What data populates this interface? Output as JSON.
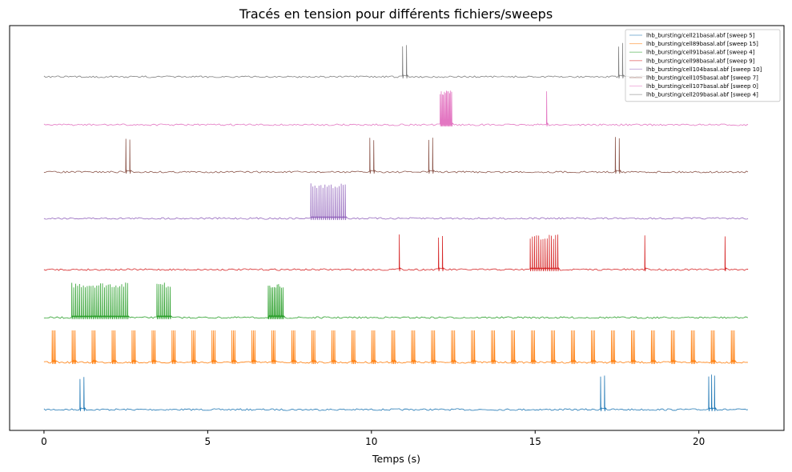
{
  "chart_data": {
    "type": "line",
    "title": "Tracés en tension pour différents fichiers/sweeps",
    "xlabel": "Temps (s)",
    "ylabel": "",
    "xlim": [
      -1.05,
      22.6
    ],
    "xticks": [
      0,
      5,
      10,
      15,
      20
    ],
    "y_axis_visible": false,
    "legend_placement": "top-right",
    "x_max": 21.5,
    "series": [
      {
        "name": "lhb_bursting/cell21basal.abf [sweep 5]",
        "color": "#1f77b4",
        "pattern": "spikes",
        "bursts": [
          [
            1.1,
            2
          ],
          [
            17.0,
            2
          ],
          [
            20.3,
            3
          ]
        ]
      },
      {
        "name": "lhb_bursting/cell89basal.abf [sweep 15]",
        "color": "#ff7f0e",
        "pattern": "regular",
        "period": 0.61,
        "start": 0.25
      },
      {
        "name": "lhb_bursting/cell91basal.abf [sweep 4]",
        "color": "#2ca02c",
        "pattern": "bursts",
        "bursts": [
          [
            0.85,
            30,
            1.7
          ],
          [
            3.45,
            8,
            0.4
          ],
          [
            6.85,
            11,
            0.45
          ]
        ]
      },
      {
        "name": "lhb_bursting/cell98basal.abf [sweep 9]",
        "color": "#d62728",
        "pattern": "spikes",
        "bursts": [
          [
            10.85,
            1
          ],
          [
            12.05,
            2
          ],
          [
            14.85,
            14
          ],
          [
            18.35,
            1
          ],
          [
            20.8,
            1
          ]
        ]
      },
      {
        "name": "lhb_bursting/cell104basal.abf [sweep 10]",
        "color": "#9467bd",
        "pattern": "bursts",
        "bursts": [
          [
            8.15,
            18,
            1.05
          ]
        ]
      },
      {
        "name": "lhb_bursting/cell105basal.abf [sweep 7]",
        "color": "#8c564b",
        "pattern": "spikes",
        "bursts": [
          [
            2.5,
            2
          ],
          [
            9.95,
            2
          ],
          [
            11.75,
            2
          ],
          [
            17.45,
            2
          ]
        ]
      },
      {
        "name": "lhb_bursting/cell107basal.abf [sweep 0]",
        "color": "#e377c2",
        "pattern": "bursts",
        "bursts": [
          [
            12.1,
            12,
            0.35
          ],
          [
            15.35,
            1,
            0
          ]
        ]
      },
      {
        "name": "lhb_bursting/cell209basal.abf [sweep 4]",
        "color": "#7f7f7f",
        "pattern": "spikes",
        "bursts": [
          [
            10.95,
            2
          ],
          [
            17.55,
            2
          ]
        ]
      }
    ]
  }
}
